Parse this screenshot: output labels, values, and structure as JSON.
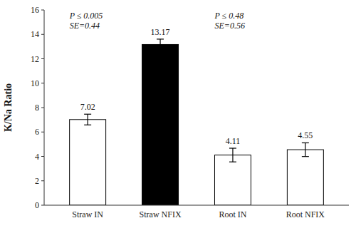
{
  "chart_data": {
    "type": "bar",
    "categories": [
      "Straw IN",
      "Straw NFIX",
      "Root IN",
      "Root NFIX"
    ],
    "values": [
      7.02,
      13.17,
      4.11,
      4.55
    ],
    "errors": [
      0.44,
      0.44,
      0.56,
      0.56
    ],
    "colors": [
      "white",
      "black",
      "white",
      "white"
    ],
    "ylabel": "K/Na Ratio",
    "ylim": [
      0,
      16
    ],
    "yticks": [
      0,
      2,
      4,
      6,
      8,
      10,
      12,
      14,
      16
    ],
    "annotations": [
      "P ≤ 0.005\nSE=0.44",
      "P ≤ 0.48\nSE=0.56"
    ],
    "data_labels": true,
    "grid": false
  }
}
